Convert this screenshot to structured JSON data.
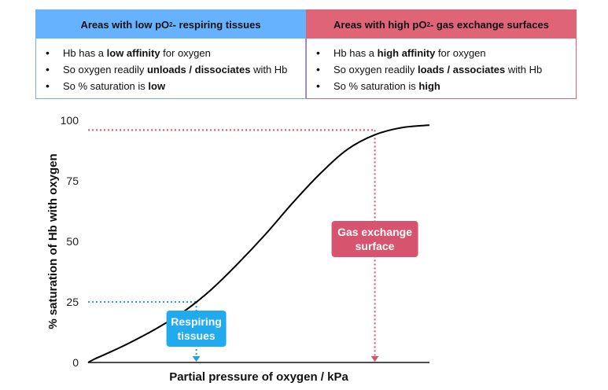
{
  "low_panel": {
    "title_pre": "Areas with low pO",
    "title_sub": "2",
    "title_post": " - respiring tissues",
    "b1_pre": "Hb has a ",
    "b1_bold": "low affinity",
    "b1_post": " for oxygen",
    "b2_pre": "So oxygen readily ",
    "b2_bold": "unloads / dissociates",
    "b2_post": " with Hb",
    "b3_pre": "So % saturation is ",
    "b3_bold": "low"
  },
  "high_panel": {
    "title_pre": "Areas with high pO",
    "title_sub": "2",
    "title_post": " - gas exchange surfaces",
    "b1_pre": "Hb has a ",
    "b1_bold": "high affinity",
    "b1_post": " for oxygen",
    "b2_pre": "So oxygen readily ",
    "b2_bold": "loads / associates",
    "b2_post": " with Hb",
    "b3_pre": "So % saturation is ",
    "b3_bold": "high"
  },
  "colors": {
    "low": "#66b2ff",
    "high": "#e06478",
    "low_guide": "#1aa3e8",
    "high_guide": "#e0506e",
    "low_box": "#22aaee",
    "high_box": "#d6546e"
  },
  "chart_data": {
    "type": "line",
    "xlabel": "Partial pressure of oxygen / kPa",
    "ylabel": "% saturation of Hb with oxygen",
    "ylim": [
      0,
      100
    ],
    "yticks": [
      "0",
      "25",
      "50",
      "75",
      "100"
    ],
    "xlim": [
      0,
      1
    ],
    "x_tick_labels": false,
    "grid": false,
    "series": [
      {
        "x": [
          0,
          0.02,
          0.06,
          0.12,
          0.2,
          0.28,
          0.36,
          0.44,
          0.52,
          0.6,
          0.68,
          0.76,
          0.84,
          0.92,
          1.0
        ],
        "y": [
          0,
          1.5,
          4,
          8,
          14,
          21,
          30,
          41,
          53,
          66,
          78,
          88,
          94,
          97,
          98
        ]
      }
    ],
    "annotations": [
      {
        "label_line1": "Respiring",
        "label_line2": "tissues",
        "x": 0.317,
        "y": 25
      },
      {
        "label_line1": "Gas exchange",
        "label_line2": "surface",
        "x": 0.84,
        "y": 96
      }
    ]
  }
}
